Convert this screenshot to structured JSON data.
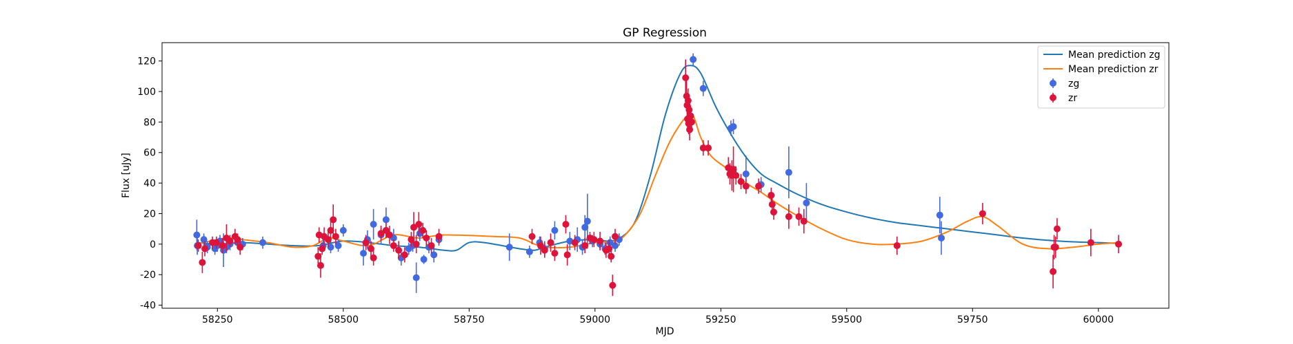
{
  "chart_data": {
    "type": "scatter",
    "title": "GP Regression",
    "xlabel": "MJD",
    "ylabel": "Flux [uJy]",
    "xlim": [
      58140,
      60140
    ],
    "ylim": [
      -42,
      132
    ],
    "xticks": [
      58250,
      58500,
      58750,
      59000,
      59250,
      59500,
      59750,
      60000
    ],
    "yticks": [
      -40,
      -20,
      0,
      20,
      40,
      60,
      80,
      100,
      120
    ],
    "grid": false,
    "legend_position": "top-right",
    "legend": [
      "Mean prediction zg",
      "Mean prediction zr",
      "zg",
      "zr"
    ],
    "series": [
      {
        "name": "Mean prediction zg",
        "kind": "line",
        "color": "#1f77b4",
        "points": [
          [
            58210,
            1
          ],
          [
            58250,
            0
          ],
          [
            58300,
            1
          ],
          [
            58350,
            0
          ],
          [
            58400,
            -1
          ],
          [
            58450,
            -1
          ],
          [
            58500,
            2
          ],
          [
            58550,
            1
          ],
          [
            58600,
            -1
          ],
          [
            58650,
            -2
          ],
          [
            58700,
            -4
          ],
          [
            58725,
            -4
          ],
          [
            58750,
            1
          ],
          [
            58780,
            1
          ],
          [
            58850,
            -3
          ],
          [
            58880,
            -4
          ],
          [
            58900,
            -2
          ],
          [
            58950,
            2
          ],
          [
            59000,
            3
          ],
          [
            59025,
            2
          ],
          [
            59050,
            4
          ],
          [
            59080,
            15
          ],
          [
            59110,
            45
          ],
          [
            59140,
            85
          ],
          [
            59170,
            112
          ],
          [
            59190,
            117
          ],
          [
            59210,
            112
          ],
          [
            59240,
            90
          ],
          [
            59270,
            72
          ],
          [
            59300,
            57
          ],
          [
            59330,
            46
          ],
          [
            59360,
            40
          ],
          [
            59400,
            33
          ],
          [
            59450,
            26
          ],
          [
            59500,
            21
          ],
          [
            59550,
            17
          ],
          [
            59600,
            14
          ],
          [
            59650,
            12
          ],
          [
            59700,
            10
          ],
          [
            59750,
            8
          ],
          [
            59800,
            6
          ],
          [
            59850,
            4
          ],
          [
            59900,
            2.5
          ],
          [
            59950,
            1.5
          ],
          [
            60000,
            1
          ],
          [
            60040,
            0.5
          ]
        ]
      },
      {
        "name": "Mean prediction zr",
        "kind": "line",
        "color": "#ff7f0e",
        "points": [
          [
            58210,
            0
          ],
          [
            58250,
            3
          ],
          [
            58280,
            4
          ],
          [
            58300,
            3
          ],
          [
            58350,
            1
          ],
          [
            58400,
            -2
          ],
          [
            58440,
            -1
          ],
          [
            58470,
            4
          ],
          [
            58500,
            2
          ],
          [
            58550,
            -1
          ],
          [
            58600,
            6
          ],
          [
            58650,
            4
          ],
          [
            58700,
            6
          ],
          [
            58800,
            5
          ],
          [
            58850,
            4
          ],
          [
            58880,
            0
          ],
          [
            58900,
            -2
          ],
          [
            58950,
            -2
          ],
          [
            59000,
            1
          ],
          [
            59040,
            2
          ],
          [
            59060,
            6
          ],
          [
            59090,
            20
          ],
          [
            59120,
            45
          ],
          [
            59150,
            68
          ],
          [
            59180,
            83
          ],
          [
            59195,
            84
          ],
          [
            59210,
            70
          ],
          [
            59230,
            58
          ],
          [
            59260,
            50
          ],
          [
            59300,
            40
          ],
          [
            59330,
            34
          ],
          [
            59360,
            27
          ],
          [
            59400,
            19
          ],
          [
            59450,
            10
          ],
          [
            59500,
            3
          ],
          [
            59550,
            0
          ],
          [
            59600,
            0
          ],
          [
            59650,
            2
          ],
          [
            59700,
            8
          ],
          [
            59740,
            15
          ],
          [
            59770,
            18
          ],
          [
            59800,
            12
          ],
          [
            59850,
            0
          ],
          [
            59900,
            -3
          ],
          [
            59950,
            -2
          ],
          [
            60000,
            0
          ],
          [
            60040,
            1
          ]
        ]
      },
      {
        "name": "zg",
        "kind": "errorbar",
        "color": "#4169e1",
        "points": [
          [
            58209,
            6,
            10
          ],
          [
            58210,
            -1,
            6
          ],
          [
            58223,
            3,
            4
          ],
          [
            58230,
            -2,
            4
          ],
          [
            58245,
            -3,
            4
          ],
          [
            58250,
            -1,
            4
          ],
          [
            58255,
            2,
            4
          ],
          [
            58262,
            -4,
            11
          ],
          [
            58268,
            -2,
            4
          ],
          [
            58275,
            0,
            4
          ],
          [
            58290,
            1,
            4
          ],
          [
            58300,
            0,
            4
          ],
          [
            58340,
            1,
            4
          ],
          [
            58460,
            -1,
            4
          ],
          [
            58475,
            -2,
            4
          ],
          [
            58490,
            -1,
            4
          ],
          [
            58500,
            9,
            4
          ],
          [
            58540,
            -6,
            8
          ],
          [
            58548,
            3,
            6
          ],
          [
            58560,
            13,
            10
          ],
          [
            58575,
            6,
            6
          ],
          [
            58585,
            16,
            8
          ],
          [
            58600,
            4,
            6
          ],
          [
            58615,
            -9,
            5
          ],
          [
            58630,
            -3,
            4
          ],
          [
            58638,
            -1,
            4
          ],
          [
            58645,
            -22,
            10
          ],
          [
            58652,
            7,
            5
          ],
          [
            58660,
            -10,
            3
          ],
          [
            58670,
            -2,
            4
          ],
          [
            58680,
            -7,
            5
          ],
          [
            58690,
            3,
            4
          ],
          [
            58830,
            -2,
            9
          ],
          [
            58870,
            -5,
            4
          ],
          [
            58890,
            1,
            4
          ],
          [
            58900,
            -3,
            5
          ],
          [
            58920,
            9,
            6
          ],
          [
            58950,
            2,
            6
          ],
          [
            58965,
            3,
            8
          ],
          [
            58975,
            -2,
            5
          ],
          [
            58980,
            11,
            8
          ],
          [
            58985,
            15,
            18
          ],
          [
            58995,
            2,
            4
          ],
          [
            59010,
            0,
            4
          ],
          [
            59020,
            -3,
            4
          ],
          [
            59030,
            1,
            4
          ],
          [
            59040,
            -1,
            4
          ],
          [
            59048,
            3,
            4
          ],
          [
            59195,
            121,
            4
          ],
          [
            59215,
            102,
            5
          ],
          [
            59270,
            76,
            5
          ],
          [
            59275,
            77,
            5
          ],
          [
            59300,
            46,
            12
          ],
          [
            59330,
            39,
            5
          ],
          [
            59385,
            47,
            17
          ],
          [
            59420,
            27,
            13
          ],
          [
            59685,
            19,
            12
          ],
          [
            59688,
            4,
            11
          ]
        ]
      },
      {
        "name": "zr",
        "kind": "errorbar",
        "color": "#dc143c",
        "points": [
          [
            58212,
            -1,
            4
          ],
          [
            58220,
            -12,
            7
          ],
          [
            58225,
            -3,
            5
          ],
          [
            58240,
            1,
            4
          ],
          [
            58248,
            1,
            4
          ],
          [
            58260,
            -1,
            5
          ],
          [
            58268,
            4,
            9
          ],
          [
            58275,
            2,
            4
          ],
          [
            58285,
            5,
            5
          ],
          [
            58290,
            3,
            4
          ],
          [
            58295,
            -2,
            5
          ],
          [
            58450,
            -8,
            6
          ],
          [
            58452,
            6,
            5
          ],
          [
            58455,
            -14,
            8
          ],
          [
            58458,
            -3,
            4
          ],
          [
            58462,
            5,
            6
          ],
          [
            58470,
            3,
            5
          ],
          [
            58475,
            9,
            8
          ],
          [
            58480,
            16,
            10
          ],
          [
            58485,
            5,
            5
          ],
          [
            58545,
            1,
            5
          ],
          [
            58555,
            -3,
            5
          ],
          [
            58560,
            -9,
            5
          ],
          [
            58575,
            7,
            5
          ],
          [
            58585,
            9,
            5
          ],
          [
            58592,
            6,
            6
          ],
          [
            58600,
            -1,
            4
          ],
          [
            58610,
            -4,
            6
          ],
          [
            58622,
            -7,
            5
          ],
          [
            58635,
            3,
            5
          ],
          [
            58640,
            11,
            10
          ],
          [
            58645,
            0,
            6
          ],
          [
            58650,
            13,
            8
          ],
          [
            58658,
            9,
            5
          ],
          [
            58665,
            4,
            5
          ],
          [
            58675,
            -1,
            5
          ],
          [
            58690,
            5,
            5
          ],
          [
            58875,
            5,
            5
          ],
          [
            58892,
            -1,
            6
          ],
          [
            58900,
            -4,
            5
          ],
          [
            58912,
            1,
            6
          ],
          [
            58920,
            -6,
            5
          ],
          [
            58942,
            13,
            6
          ],
          [
            58945,
            -7,
            7
          ],
          [
            58960,
            1,
            5
          ],
          [
            58980,
            -1,
            5
          ],
          [
            58990,
            4,
            4
          ],
          [
            58998,
            3,
            5
          ],
          [
            59010,
            2,
            6
          ],
          [
            59022,
            -4,
            5
          ],
          [
            59028,
            -3,
            6
          ],
          [
            59032,
            -8,
            4
          ],
          [
            59035,
            -27,
            7
          ],
          [
            59040,
            5,
            5
          ],
          [
            59180,
            109,
            12
          ],
          [
            59182,
            97,
            10
          ],
          [
            59183,
            91,
            8
          ],
          [
            59184,
            82,
            8
          ],
          [
            59185,
            94,
            8
          ],
          [
            59186,
            79,
            7
          ],
          [
            59187,
            88,
            7
          ],
          [
            59188,
            75,
            7
          ],
          [
            59190,
            84,
            7
          ],
          [
            59192,
            80,
            6
          ],
          [
            59215,
            63,
            5
          ],
          [
            59225,
            63,
            5
          ],
          [
            59265,
            50,
            7
          ],
          [
            59268,
            46,
            7
          ],
          [
            59272,
            45,
            10
          ],
          [
            59275,
            49,
            15
          ],
          [
            59280,
            45,
            6
          ],
          [
            59290,
            41,
            5
          ],
          [
            59300,
            38,
            5
          ],
          [
            59325,
            38,
            5
          ],
          [
            59350,
            32,
            5
          ],
          [
            59352,
            26,
            6
          ],
          [
            59355,
            21,
            5
          ],
          [
            59385,
            18,
            8
          ],
          [
            59405,
            18,
            6
          ],
          [
            59415,
            15,
            8
          ],
          [
            59600,
            -1,
            6
          ],
          [
            59770,
            20,
            7
          ],
          [
            59910,
            -18,
            11
          ],
          [
            59912,
            -2,
            8
          ],
          [
            59915,
            -2,
            7
          ],
          [
            59918,
            10,
            7
          ],
          [
            59985,
            1,
            9
          ],
          [
            60040,
            0,
            6
          ]
        ]
      }
    ]
  }
}
